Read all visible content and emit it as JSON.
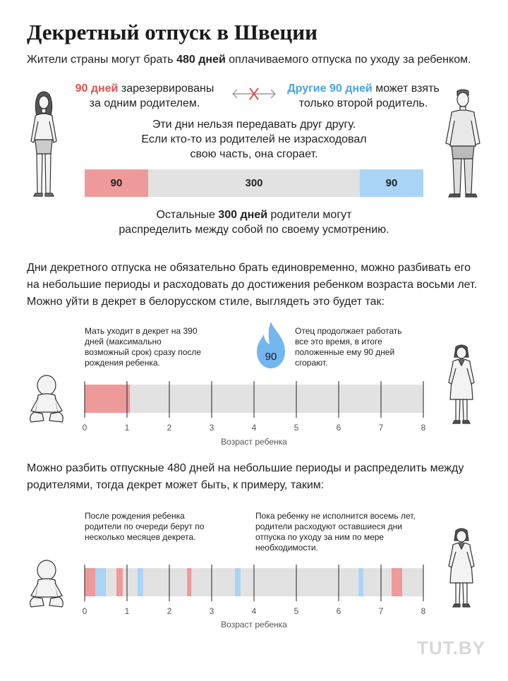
{
  "title": "Декретный отпуск в Швеции",
  "subtitle": {
    "prefix": "Жители страны могут брать ",
    "bold": "480 дней",
    "suffix": " оплачиваемого отпуска по уходу за ребенком."
  },
  "reserved_left": {
    "accent": "90 дней",
    "line1_rest": " зарезервированы",
    "line2": "за одним родителем."
  },
  "reserved_right": {
    "accent": "Другие 90 дней",
    "line1_rest": " может взять",
    "line2": "только второй родитель."
  },
  "no_transfer": {
    "line1": "Эти дни нельзя передавать друг другу.",
    "line2": "Если кто-то из родителей не израсходовал",
    "line3": "свою часть, она сгорает."
  },
  "remaining": {
    "prefix": "Остальные ",
    "bold": "300 дней",
    "suffix": " родители могут",
    "line2": "распределить между собой по своему усмотрению."
  },
  "paragraph1": "Дни декретного отпуска не обязательно брать единовременно, можно разбивать его на небольшие периоды и расходовать до достижения ребенком возраста восьми лет. Можно уйти в декрет в белорусском стиле, выглядеть это будет так:",
  "note_mother": "Мать уходит в декрет на 390 дней (максимально возможный срок) сразу после рождения ребенка.",
  "flame_value": "90",
  "note_father": "Отец продолжает работать все это время, в итоге положенные ему 90 дней сгорают.",
  "paragraph2": "Можно разбить отпускные 480 дней на небольшие периоды и распределить между родителями, тогда декрет может быть, к примеру, таким:",
  "note_alternating": "После рождения ребенка родители по очереди берут по несколько месяцев декрета.",
  "note_later": "Пока ребенку не исполнится восемь лет, родители расходуют оставшиеся дни отпуска по уходу за ним по мере необходимости.",
  "logo": "TUT.BY",
  "colors": {
    "mother": "#ef9a9a",
    "father": "#a9d4f5",
    "neutral": "#e2e2e2",
    "red_text": "#e0524e",
    "blue_text": "#4aa3e6"
  },
  "chart_data": [
    {
      "type": "bar",
      "orientation": "horizontal-stacked",
      "unit": "дней",
      "total": 480,
      "segments": [
        {
          "name": "mother_reserved",
          "value": 90,
          "label": "90"
        },
        {
          "name": "shared",
          "value": 300,
          "label": "300"
        },
        {
          "name": "father_reserved",
          "value": 90,
          "label": "90"
        }
      ]
    },
    {
      "type": "bar",
      "orientation": "timeline",
      "xlabel": "Возраст ребенка",
      "xlim": [
        0,
        8
      ],
      "ticks": [
        "0",
        "1",
        "2",
        "3",
        "4",
        "5",
        "6",
        "7",
        "8"
      ],
      "intervals": [
        {
          "parent": "mother",
          "start": 0,
          "end": 1.07
        }
      ]
    },
    {
      "type": "bar",
      "orientation": "timeline",
      "xlabel": "Возраст ребенка",
      "xlim": [
        0,
        8
      ],
      "ticks": [
        "0",
        "1",
        "2",
        "3",
        "4",
        "5",
        "6",
        "7",
        "8"
      ],
      "intervals": [
        {
          "parent": "mother",
          "start": 0,
          "end": 0.25
        },
        {
          "parent": "father",
          "start": 0.25,
          "end": 0.5
        },
        {
          "parent": "mother",
          "start": 0.75,
          "end": 0.9
        },
        {
          "parent": "father",
          "start": 1.25,
          "end": 1.38
        },
        {
          "parent": "mother",
          "start": 2.42,
          "end": 2.52
        },
        {
          "parent": "father",
          "start": 3.55,
          "end": 3.68
        },
        {
          "parent": "father",
          "start": 6.47,
          "end": 6.58
        },
        {
          "parent": "mother",
          "start": 7.25,
          "end": 7.5
        }
      ]
    }
  ]
}
